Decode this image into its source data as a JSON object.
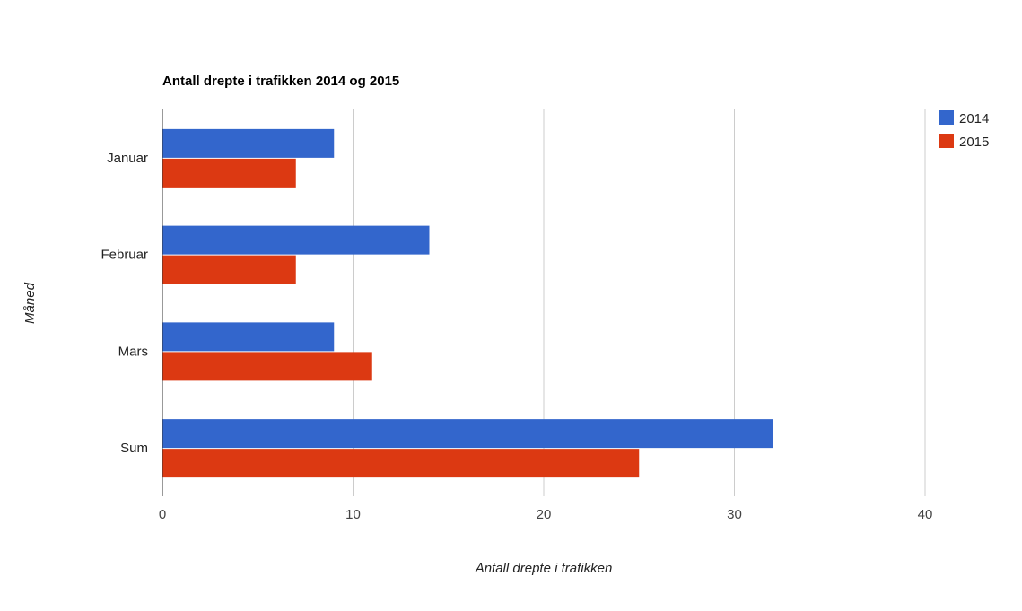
{
  "chart_data": {
    "type": "bar",
    "orientation": "horizontal",
    "title": "Antall drepte i trafikken 2014 og 2015",
    "xlabel": "Antall drepte i trafikken",
    "ylabel": "Måned",
    "categories": [
      "Januar",
      "Februar",
      "Mars",
      "Sum"
    ],
    "series": [
      {
        "name": "2014",
        "color": "#3366cc",
        "values": [
          9,
          14,
          9,
          32
        ]
      },
      {
        "name": "2015",
        "color": "#dc3912",
        "values": [
          7,
          7,
          11,
          25
        ]
      }
    ],
    "xlim": [
      0,
      40
    ],
    "xticks": [
      "0",
      "10",
      "20",
      "30",
      "40"
    ],
    "grid": true,
    "legend_position": "right"
  }
}
